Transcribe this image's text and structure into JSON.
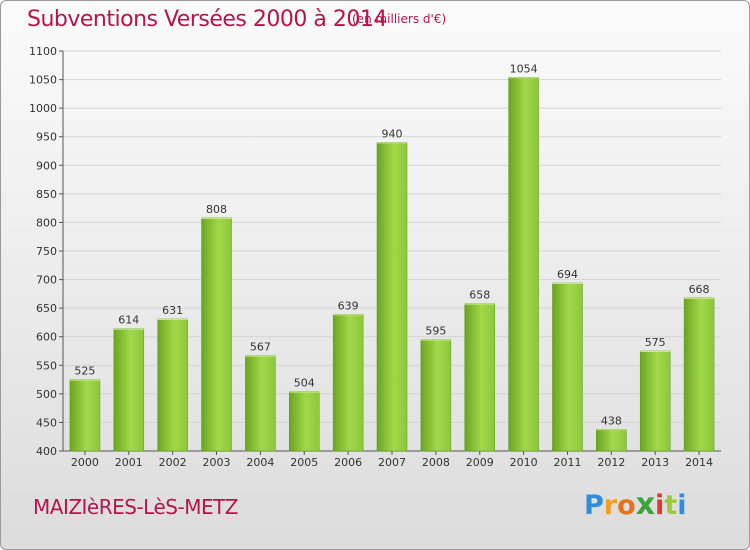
{
  "header": {
    "title": "Subventions Versées 2000 à 2014",
    "subtitle": "(en milliers d'€)"
  },
  "footer": {
    "commune": "MAIZIèRES-LèS-METZ",
    "logo": {
      "letters": [
        "P",
        "r",
        "o",
        "x",
        "i",
        "t",
        "i"
      ],
      "colors": [
        "#2e8ede",
        "#f0a020",
        "#e8721c",
        "#3ba53b",
        "#e03a2c",
        "#9ec93a",
        "#2e8ede"
      ]
    }
  },
  "colors": {
    "bar_light": "#a2d84a",
    "bar_dark": "#6aa520",
    "text": "#b5144c",
    "grid": "#d4d4d4"
  },
  "chart_data": {
    "type": "bar",
    "title": "Subventions Versées 2000 à 2014",
    "subtitle": "(en milliers d'€)",
    "categories": [
      "2000",
      "2001",
      "2002",
      "2003",
      "2004",
      "2005",
      "2006",
      "2007",
      "2008",
      "2009",
      "2010",
      "2011",
      "2012",
      "2013",
      "2014"
    ],
    "values": [
      525,
      614,
      631,
      808,
      567,
      504,
      639,
      940,
      595,
      658,
      1054,
      694,
      438,
      575,
      668
    ],
    "ylim": [
      400,
      1100
    ],
    "yticks": [
      400,
      450,
      500,
      550,
      600,
      650,
      700,
      750,
      800,
      850,
      900,
      950,
      1000,
      1050,
      1100
    ],
    "grid": true,
    "legend": "none"
  }
}
